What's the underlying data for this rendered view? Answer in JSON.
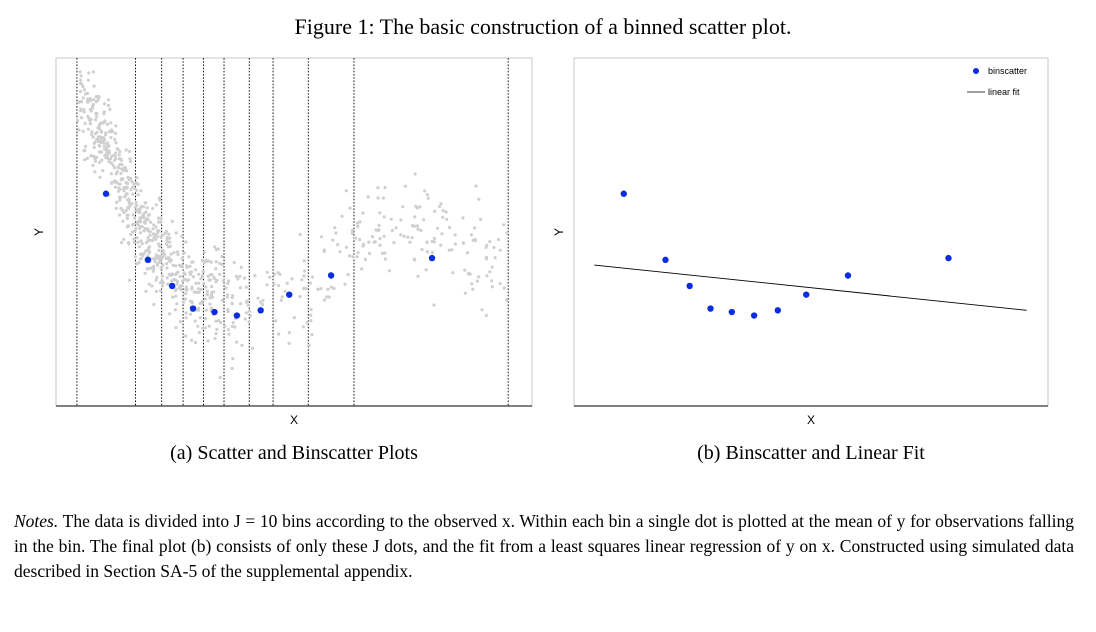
{
  "figure": {
    "title": "Figure 1: The basic construction of a binned scatter plot.",
    "notes": {
      "label": "Notes.",
      "text": "The data is divided into J = 10 bins according to the observed x. Within each bin a single dot is plotted at the mean of y for observations falling in the bin. The final plot (b) consists of only these J dots, and the fit from a least squares linear regression of y on x. Constructed using simulated data described in Section SA-5 of the supplemental appendix."
    }
  },
  "colors": {
    "scatter": "#cfcfcf",
    "binscatter": "#0a2de0",
    "fit": "#000000",
    "bin_edges": "#000000"
  },
  "chart_data": [
    {
      "type": "scatter",
      "caption": "(a) Scatter and Binscatter Plots",
      "xlabel": "X",
      "ylabel": "Y",
      "xlim": [
        0,
        1
      ],
      "ylim": [
        0,
        1
      ],
      "bin_edges": [
        0.044,
        0.167,
        0.222,
        0.267,
        0.31,
        0.353,
        0.406,
        0.456,
        0.53,
        0.626,
        0.95
      ],
      "scatter_curve": {
        "x": [
          0.04,
          0.1,
          0.15,
          0.2,
          0.25,
          0.3,
          0.35,
          0.4,
          0.45,
          0.5,
          0.55,
          0.6,
          0.65,
          0.7,
          0.75,
          0.8,
          0.85,
          0.9,
          0.95
        ],
        "y": [
          0.9,
          0.76,
          0.6,
          0.46,
          0.37,
          0.32,
          0.3,
          0.28,
          0.29,
          0.3,
          0.37,
          0.45,
          0.5,
          0.53,
          0.5,
          0.5,
          0.45,
          0.42,
          0.38
        ]
      },
      "series": [
        {
          "name": "binscatter",
          "x": [
            0.105,
            0.193,
            0.244,
            0.288,
            0.333,
            0.38,
            0.43,
            0.49,
            0.578,
            0.79
          ],
          "y": [
            0.61,
            0.42,
            0.345,
            0.28,
            0.27,
            0.26,
            0.275,
            0.32,
            0.375,
            0.425
          ]
        }
      ]
    },
    {
      "type": "scatter",
      "caption": "(b) Binscatter and Linear Fit",
      "xlabel": "X",
      "ylabel": "Y",
      "xlim": [
        0,
        1
      ],
      "ylim": [
        0,
        1
      ],
      "legend": "top-right",
      "series": [
        {
          "name": "binscatter",
          "x": [
            0.105,
            0.193,
            0.244,
            0.288,
            0.333,
            0.38,
            0.43,
            0.49,
            0.578,
            0.79
          ],
          "y": [
            0.61,
            0.42,
            0.345,
            0.28,
            0.27,
            0.26,
            0.275,
            0.32,
            0.375,
            0.425
          ]
        },
        {
          "name": "linear fit",
          "type": "line",
          "x": [
            0.043,
            0.955
          ],
          "y": [
            0.405,
            0.275
          ]
        }
      ]
    }
  ]
}
